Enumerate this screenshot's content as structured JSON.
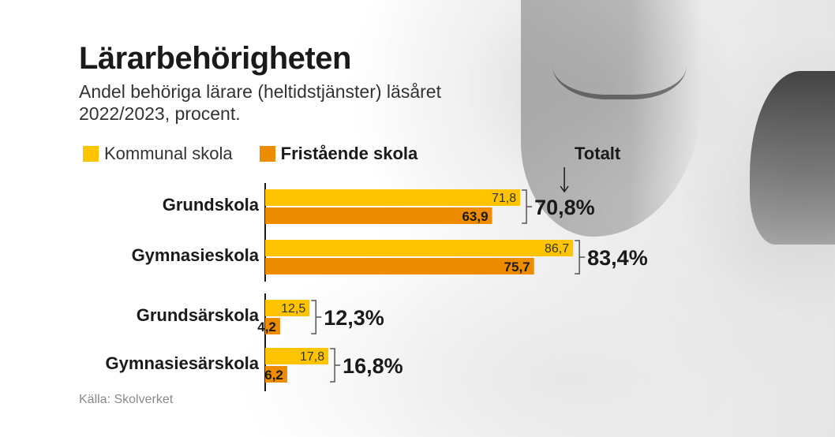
{
  "colors": {
    "kommunal": "#ffc400",
    "fristaende": "#ee8c00",
    "axis": "#1a1a1a",
    "bracket": "#555555"
  },
  "title": "Lärarbehörigheten",
  "subtitle": "Andel behöriga lärare (heltidstjänster) läsåret 2022/2023, procent.",
  "legend": {
    "kommunal": "Kommunal skola",
    "fristaende": "Fristående skola"
  },
  "total_header": "Totalt",
  "source": "Källa: Skolverket",
  "chart_data": {
    "type": "bar",
    "orientation": "horizontal",
    "categories": [
      "Grundskola",
      "Gymnasieskola",
      "Grundsärskola",
      "Gymnasiesärskola"
    ],
    "series": [
      {
        "name": "Kommunal skola",
        "values": [
          71.8,
          86.7,
          12.5,
          17.8
        ],
        "labels": [
          "71,8",
          "86,7",
          "12,5",
          "17,8"
        ]
      },
      {
        "name": "Fristående skola",
        "values": [
          63.9,
          75.7,
          4.2,
          6.2
        ],
        "labels": [
          "63,9",
          "75,7",
          "4,2",
          "6,2"
        ]
      }
    ],
    "totals": [
      70.8,
      83.4,
      12.3,
      16.8
    ],
    "total_labels": [
      "70,8%",
      "83,4%",
      "12,3%",
      "16,8%"
    ],
    "xlim": [
      0,
      100
    ]
  }
}
